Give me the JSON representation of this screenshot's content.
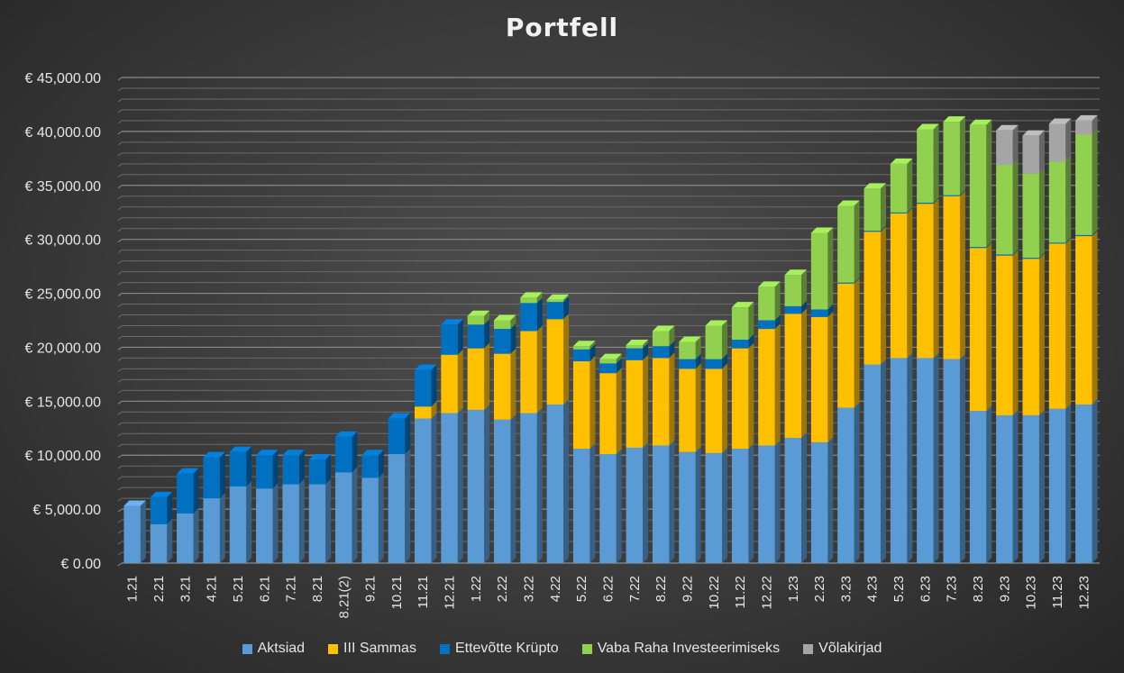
{
  "chart_data": {
    "type": "bar",
    "stacked": true,
    "title": "Portfell",
    "xlabel": "",
    "ylabel": "",
    "ylim": [
      0,
      45000
    ],
    "yticks": [
      "€ 0.00",
      "€ 5,000.00",
      "€ 10,000.00",
      "€ 15,000.00",
      "€ 20,000.00",
      "€ 25,000.00",
      "€ 30,000.00",
      "€ 35,000.00",
      "€ 40,000.00",
      "€ 45,000.00"
    ],
    "grid": true,
    "legend_position": "bottom",
    "categories": [
      "1.21",
      "2.21",
      "3.21",
      "4.21",
      "5.21",
      "6.21",
      "7.21",
      "8.21",
      "8.21(2)",
      "9.21",
      "10.21",
      "11.21",
      "12.21",
      "1.22",
      "2.22",
      "3.22",
      "4.22",
      "5.22",
      "6.22",
      "7.22",
      "8.22",
      "9.22",
      "10.22",
      "11.22",
      "12.22",
      "1.23",
      "2.23",
      "3.23",
      "4.23",
      "5.23",
      "6.23",
      "7.23",
      "8.23",
      "9.23",
      "10.23",
      "11.23",
      "12.23"
    ],
    "series": [
      {
        "name": "Aktsiad",
        "color": "#5b9bd5",
        "values": [
          5300,
          3600,
          4600,
          6000,
          7100,
          6900,
          7300,
          7300,
          8400,
          7900,
          10100,
          13400,
          13900,
          14200,
          13300,
          13900,
          14700,
          10600,
          10100,
          10700,
          10900,
          10300,
          10200,
          10600,
          10900,
          11600,
          11200,
          14400,
          18400,
          19000,
          19000,
          18900,
          14100,
          13700,
          13700,
          14300,
          14700
        ]
      },
      {
        "name": "III Sammas",
        "color": "#ffc000",
        "values": [
          0,
          0,
          0,
          0,
          0,
          0,
          0,
          0,
          0,
          0,
          0,
          1100,
          5400,
          5700,
          6100,
          7600,
          7900,
          8100,
          7500,
          8100,
          8100,
          7700,
          7800,
          9300,
          10800,
          11500,
          11600,
          11500,
          12300,
          13400,
          14300,
          15100,
          15100,
          14800,
          14500,
          15300,
          15600
        ]
      },
      {
        "name": "Ettevõtte Krüpto",
        "color": "#0070c0",
        "values": [
          0,
          2500,
          3700,
          3800,
          3200,
          3100,
          2700,
          2300,
          3300,
          2100,
          3300,
          3400,
          2800,
          2200,
          2300,
          2600,
          1600,
          1100,
          900,
          1100,
          1100,
          900,
          900,
          800,
          800,
          700,
          700,
          100,
          100,
          100,
          100,
          100,
          100,
          100,
          100,
          100,
          100
        ]
      },
      {
        "name": "Vaba Raha Investeerimiseks",
        "color": "#92d050",
        "values": [
          0,
          0,
          0,
          0,
          0,
          0,
          0,
          0,
          0,
          0,
          0,
          0,
          0,
          800,
          800,
          500,
          200,
          300,
          400,
          300,
          1400,
          1600,
          3100,
          3000,
          3100,
          2900,
          7100,
          7100,
          3900,
          4500,
          6800,
          6800,
          11300,
          8300,
          7800,
          7500,
          9300
        ]
      },
      {
        "name": "Võlakirjad",
        "color": "#a5a5a5",
        "values": [
          0,
          0,
          0,
          0,
          0,
          0,
          0,
          0,
          0,
          0,
          0,
          0,
          0,
          0,
          0,
          0,
          0,
          0,
          0,
          0,
          0,
          0,
          0,
          0,
          0,
          0,
          0,
          0,
          0,
          0,
          0,
          0,
          0,
          3200,
          3500,
          3500,
          1300
        ]
      }
    ]
  }
}
